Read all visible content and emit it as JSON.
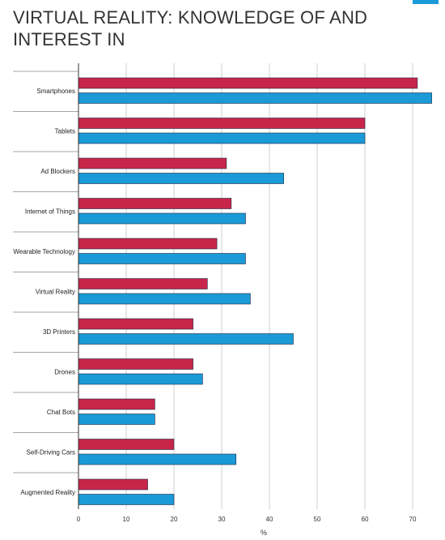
{
  "chart_data": {
    "type": "bar",
    "orientation": "horizontal",
    "title": "VIRTUAL REALITY: KNOWLEDGE OF AND INTEREST IN",
    "xlabel": "%",
    "ylabel": "",
    "xlim": [
      0,
      75
    ],
    "xticks": [
      "0",
      "10",
      "20",
      "30",
      "40",
      "50",
      "60",
      "70"
    ],
    "grid": true,
    "categories": [
      "Smartphones",
      "Tablets",
      "Ad Blockers",
      "Internet of Things",
      "Wearable Technology",
      "Virtual Reality",
      "3D Printers",
      "Drones",
      "Chat Bots",
      "Self-Driving Cars",
      "Augmented Reality"
    ],
    "series": [
      {
        "color": "#c8254a",
        "values": [
          71,
          60,
          31,
          32,
          29,
          27,
          24,
          24,
          16,
          20,
          14.5
        ]
      },
      {
        "color": "#1a9ad6",
        "values": [
          74,
          60,
          43,
          35,
          35,
          36,
          45,
          26,
          16,
          33,
          20
        ]
      }
    ]
  }
}
